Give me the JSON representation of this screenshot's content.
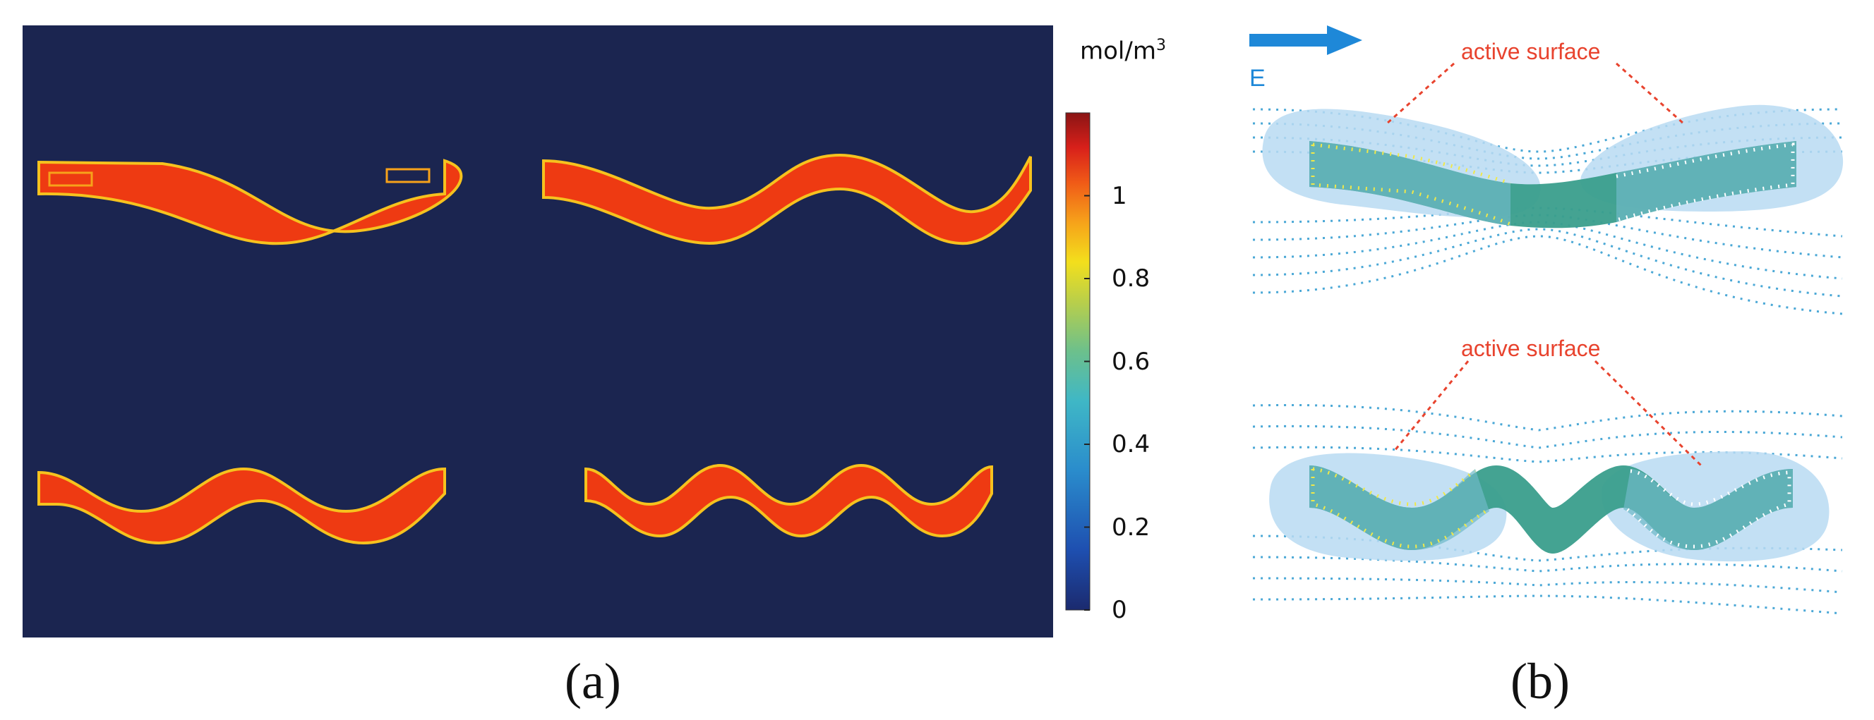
{
  "panel_a": {
    "caption": "(a)",
    "colorbar": {
      "unit_base": "mol/m",
      "unit_sup": "3",
      "ticks": [
        "0",
        "0.2",
        "0.4",
        "0.6",
        "0.8",
        "1"
      ],
      "tick_values": [
        0,
        0.2,
        0.4,
        0.6,
        0.8,
        1
      ],
      "min": 0,
      "max": 1.2
    },
    "colors": {
      "background": "#1b2550",
      "shape_fill": "#ee3a12",
      "shape_edge": "#f6c21e"
    }
  },
  "panel_b": {
    "caption": "(b)",
    "field_label": "E",
    "top_label": "active surface",
    "bottom_label": "active surface",
    "colors": {
      "arrow": "#1e88d8",
      "electrode": "#3a9e8c",
      "halo": "#b8daf2",
      "field_lines": "#4ba8d6",
      "annotation": "#e8432e"
    }
  }
}
